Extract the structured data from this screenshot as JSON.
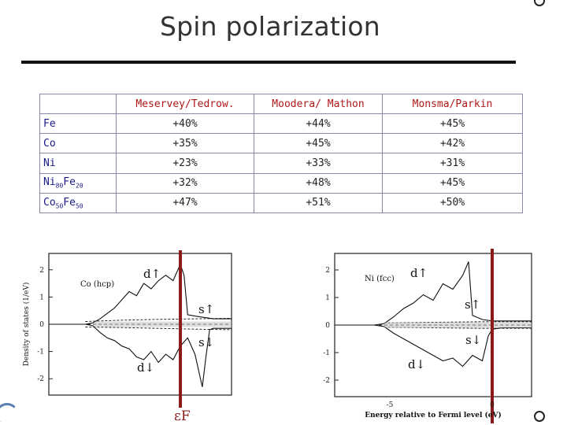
{
  "slide": {
    "title": "Spin polarization"
  },
  "table": {
    "headers": [
      "",
      "Meservey/Tedrow.",
      "Moodera/ Mathon",
      "Monsma/Parkin"
    ],
    "rows": [
      {
        "material": "Fe",
        "base": "Fe",
        "sub1": "",
        "base2": "",
        "sub2": "",
        "values": [
          "+40%",
          "+44%",
          "+45%"
        ]
      },
      {
        "material": "Co",
        "base": "Co",
        "sub1": "",
        "base2": "",
        "sub2": "",
        "values": [
          "+35%",
          "+45%",
          "+42%"
        ]
      },
      {
        "material": "Ni",
        "base": "Ni",
        "sub1": "",
        "base2": "",
        "sub2": "",
        "values": [
          "+23%",
          "+33%",
          "+31%"
        ]
      },
      {
        "material": "Ni80Fe20",
        "base": "Ni",
        "sub1": "80",
        "base2": "Fe",
        "sub2": "20",
        "values": [
          "+32%",
          "+48%",
          "+45%"
        ]
      },
      {
        "material": "Co50Fe50",
        "base": "Co",
        "sub1": "50",
        "base2": "Fe",
        "sub2": "50",
        "values": [
          "+47%",
          "+51%",
          "+50%"
        ]
      }
    ]
  },
  "chart_data": [
    {
      "type": "line",
      "title": "Co (hcp)",
      "ylabel": "Density of states (1/eV)",
      "xlabel": "",
      "ylim": [
        -2.6,
        2.6
      ],
      "yticks": [
        "2",
        "1",
        "0",
        "-1",
        "-2"
      ],
      "annotations": {
        "d_up": "d↑",
        "s_up": "s↑",
        "s_down": "s↓",
        "d_down": "d↓",
        "fermi": "εF"
      },
      "series": [
        {
          "name": "majority d (up)",
          "x": [
            0,
            0.05,
            0.1,
            0.15,
            0.2,
            0.24,
            0.28,
            0.32,
            0.36,
            0.4,
            0.44,
            0.48,
            0.52,
            0.56,
            0.6,
            0.64,
            0.68,
            0.72,
            0.74,
            0.76,
            0.8,
            0.85,
            0.9,
            0.95,
            1.0
          ],
          "y": [
            0,
            0,
            0,
            0,
            0,
            0.05,
            0.2,
            0.4,
            0.6,
            0.9,
            1.2,
            1.05,
            1.5,
            1.3,
            1.6,
            1.8,
            1.6,
            2.2,
            1.8,
            0.35,
            0.3,
            0.25,
            0.2,
            0.2,
            0.2
          ]
        },
        {
          "name": "minority d (down)",
          "x": [
            0,
            0.05,
            0.1,
            0.15,
            0.2,
            0.24,
            0.28,
            0.32,
            0.36,
            0.4,
            0.44,
            0.48,
            0.52,
            0.56,
            0.6,
            0.64,
            0.68,
            0.72,
            0.76,
            0.8,
            0.84,
            0.86,
            0.88,
            0.9,
            0.95,
            1.0
          ],
          "y": [
            0,
            0,
            0,
            0,
            0,
            -0.05,
            -0.3,
            -0.5,
            -0.6,
            -0.8,
            -0.9,
            -1.2,
            -1.3,
            -1.0,
            -1.4,
            -1.1,
            -1.3,
            -0.8,
            -0.5,
            -1.1,
            -2.3,
            -1.2,
            -0.2,
            -0.15,
            -0.15,
            -0.15
          ]
        },
        {
          "name": "s up",
          "x": [
            0.2,
            0.4,
            0.6,
            0.8,
            1.0
          ],
          "y": [
            0.1,
            0.15,
            0.18,
            0.2,
            0.22
          ]
        },
        {
          "name": "s down",
          "x": [
            0.2,
            0.4,
            0.6,
            0.8,
            1.0
          ],
          "y": [
            -0.1,
            -0.12,
            -0.15,
            -0.18,
            -0.2
          ]
        }
      ],
      "fermi_x": 0.72
    },
    {
      "type": "line",
      "title": "Ni (fcc)",
      "ylabel": "",
      "xlabel": "Energy relative to Fermi level (eV)",
      "ylim": [
        -2.6,
        2.6
      ],
      "yticks": [
        "2",
        "1",
        "0",
        "-1",
        "-2"
      ],
      "xticks": [
        "-5",
        "0"
      ],
      "annotations": {
        "d_up": "d↑",
        "s_up": "s↑",
        "s_down": "s↓",
        "d_down": "d↓"
      },
      "series": [
        {
          "name": "majority d (up)",
          "x": [
            0,
            0.05,
            0.1,
            0.15,
            0.2,
            0.25,
            0.3,
            0.35,
            0.4,
            0.45,
            0.5,
            0.55,
            0.6,
            0.65,
            0.68,
            0.7,
            0.75,
            0.8,
            0.9,
            1.0
          ],
          "y": [
            0,
            0,
            0,
            0,
            0,
            0.05,
            0.3,
            0.6,
            0.8,
            1.1,
            0.9,
            1.5,
            1.3,
            1.8,
            2.3,
            0.35,
            0.2,
            0.15,
            0.15,
            0.15
          ]
        },
        {
          "name": "minority d (down)",
          "x": [
            0,
            0.05,
            0.1,
            0.15,
            0.2,
            0.25,
            0.3,
            0.35,
            0.4,
            0.45,
            0.5,
            0.55,
            0.6,
            0.65,
            0.7,
            0.75,
            0.78,
            0.8,
            0.85,
            0.9,
            1.0
          ],
          "y": [
            0,
            0,
            0,
            0,
            0,
            -0.05,
            -0.3,
            -0.5,
            -0.7,
            -0.9,
            -1.1,
            -1.3,
            -1.2,
            -1.5,
            -1.1,
            -1.3,
            -0.4,
            -0.15,
            -0.1,
            -0.1,
            -0.1
          ]
        },
        {
          "name": "s up",
          "x": [
            0.25,
            0.5,
            0.75,
            1.0
          ],
          "y": [
            0.08,
            0.1,
            0.12,
            0.12
          ]
        },
        {
          "name": "s down",
          "x": [
            0.25,
            0.5,
            0.75,
            1.0
          ],
          "y": [
            -0.08,
            -0.1,
            -0.12,
            -0.12
          ]
        }
      ],
      "fermi_x": 0.8
    }
  ]
}
